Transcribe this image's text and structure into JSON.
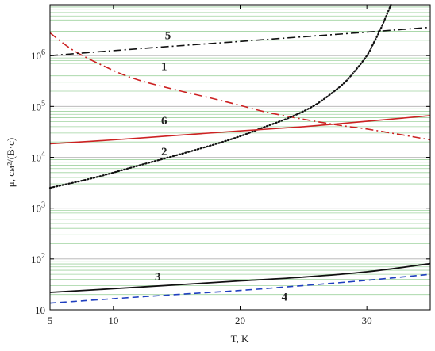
{
  "chart_data": {
    "type": "line",
    "xlabel": "T, K",
    "ylabel": "μ, см²/(В·с)",
    "xlim": [
      5,
      35
    ],
    "ylim": [
      10,
      10000000
    ],
    "y_scale": "log",
    "x_ticks": [
      5,
      10,
      20,
      30
    ],
    "x_tick_labels": [
      "5",
      "10",
      "20",
      "30"
    ],
    "y_ticks": [
      10,
      100,
      1000,
      10000,
      100000,
      1000000
    ],
    "y_tick_labels": [
      {
        "base": "10",
        "exp": ""
      },
      {
        "base": "10",
        "exp": "2"
      },
      {
        "base": "10",
        "exp": "3"
      },
      {
        "base": "10",
        "exp": "4"
      },
      {
        "base": "10",
        "exp": "5"
      },
      {
        "base": "10",
        "exp": "6"
      }
    ],
    "grid": {
      "horizontal_minor": true,
      "color": "#9fd39f",
      "decade_color": "#b0b0b0"
    },
    "series": [
      {
        "name": "1",
        "color": "#cc2222",
        "dash": "dashdot",
        "x": [
          5,
          7,
          10,
          12,
          15,
          18,
          20,
          22,
          25,
          28,
          30,
          33,
          35
        ],
        "y": [
          2800000,
          1200000,
          510000,
          330000,
          210000,
          140000,
          105000,
          78000,
          56000,
          42000,
          36000,
          27000,
          22000
        ]
      },
      {
        "name": "2",
        "color": "#111111",
        "dash": "dotted",
        "x": [
          5,
          8,
          10,
          12,
          15,
          18,
          20,
          22,
          24,
          26,
          28,
          29,
          30,
          30.5,
          31,
          31.3,
          31.6,
          31.9
        ],
        "y": [
          2500,
          3700,
          5000,
          6900,
          11000,
          18000,
          26000,
          40000,
          62000,
          110000,
          260000,
          480000,
          1000000,
          1700000,
          3000000,
          4400000,
          6600000,
          10000000
        ]
      },
      {
        "name": "3",
        "color": "#111111",
        "dash": "solid",
        "x": [
          5,
          10,
          15,
          20,
          25,
          30,
          35
        ],
        "y": [
          22,
          26,
          31,
          37,
          44,
          56,
          81
        ]
      },
      {
        "name": "4",
        "color": "#1f3fbf",
        "dash": "dashed",
        "x": [
          5,
          10,
          15,
          20,
          25,
          30,
          35
        ],
        "y": [
          13.5,
          16.5,
          20,
          24,
          30,
          38,
          50
        ]
      },
      {
        "name": "5",
        "color": "#111111",
        "dash": "dashdot",
        "x": [
          5,
          10,
          15,
          20,
          25,
          30,
          35
        ],
        "y": [
          1000000,
          1250000,
          1550000,
          1900000,
          2350000,
          2900000,
          3600000
        ]
      },
      {
        "name": "6",
        "color": "#cc2222",
        "dash": "solid",
        "x": [
          5,
          10,
          15,
          20,
          25,
          30,
          35
        ],
        "y": [
          18500,
          22000,
          27000,
          33000,
          40000,
          51000,
          66000
        ]
      }
    ],
    "annotations": [
      {
        "text": "5",
        "x": 14.3,
        "y": 2100000
      },
      {
        "text": "1",
        "x": 14.0,
        "y": 520000
      },
      {
        "text": "6",
        "x": 14.0,
        "y": 44000
      },
      {
        "text": "2",
        "x": 14.0,
        "y": 11000
      },
      {
        "text": "3",
        "x": 13.5,
        "y": 38
      },
      {
        "text": "4",
        "x": 23.5,
        "y": 15
      }
    ]
  }
}
